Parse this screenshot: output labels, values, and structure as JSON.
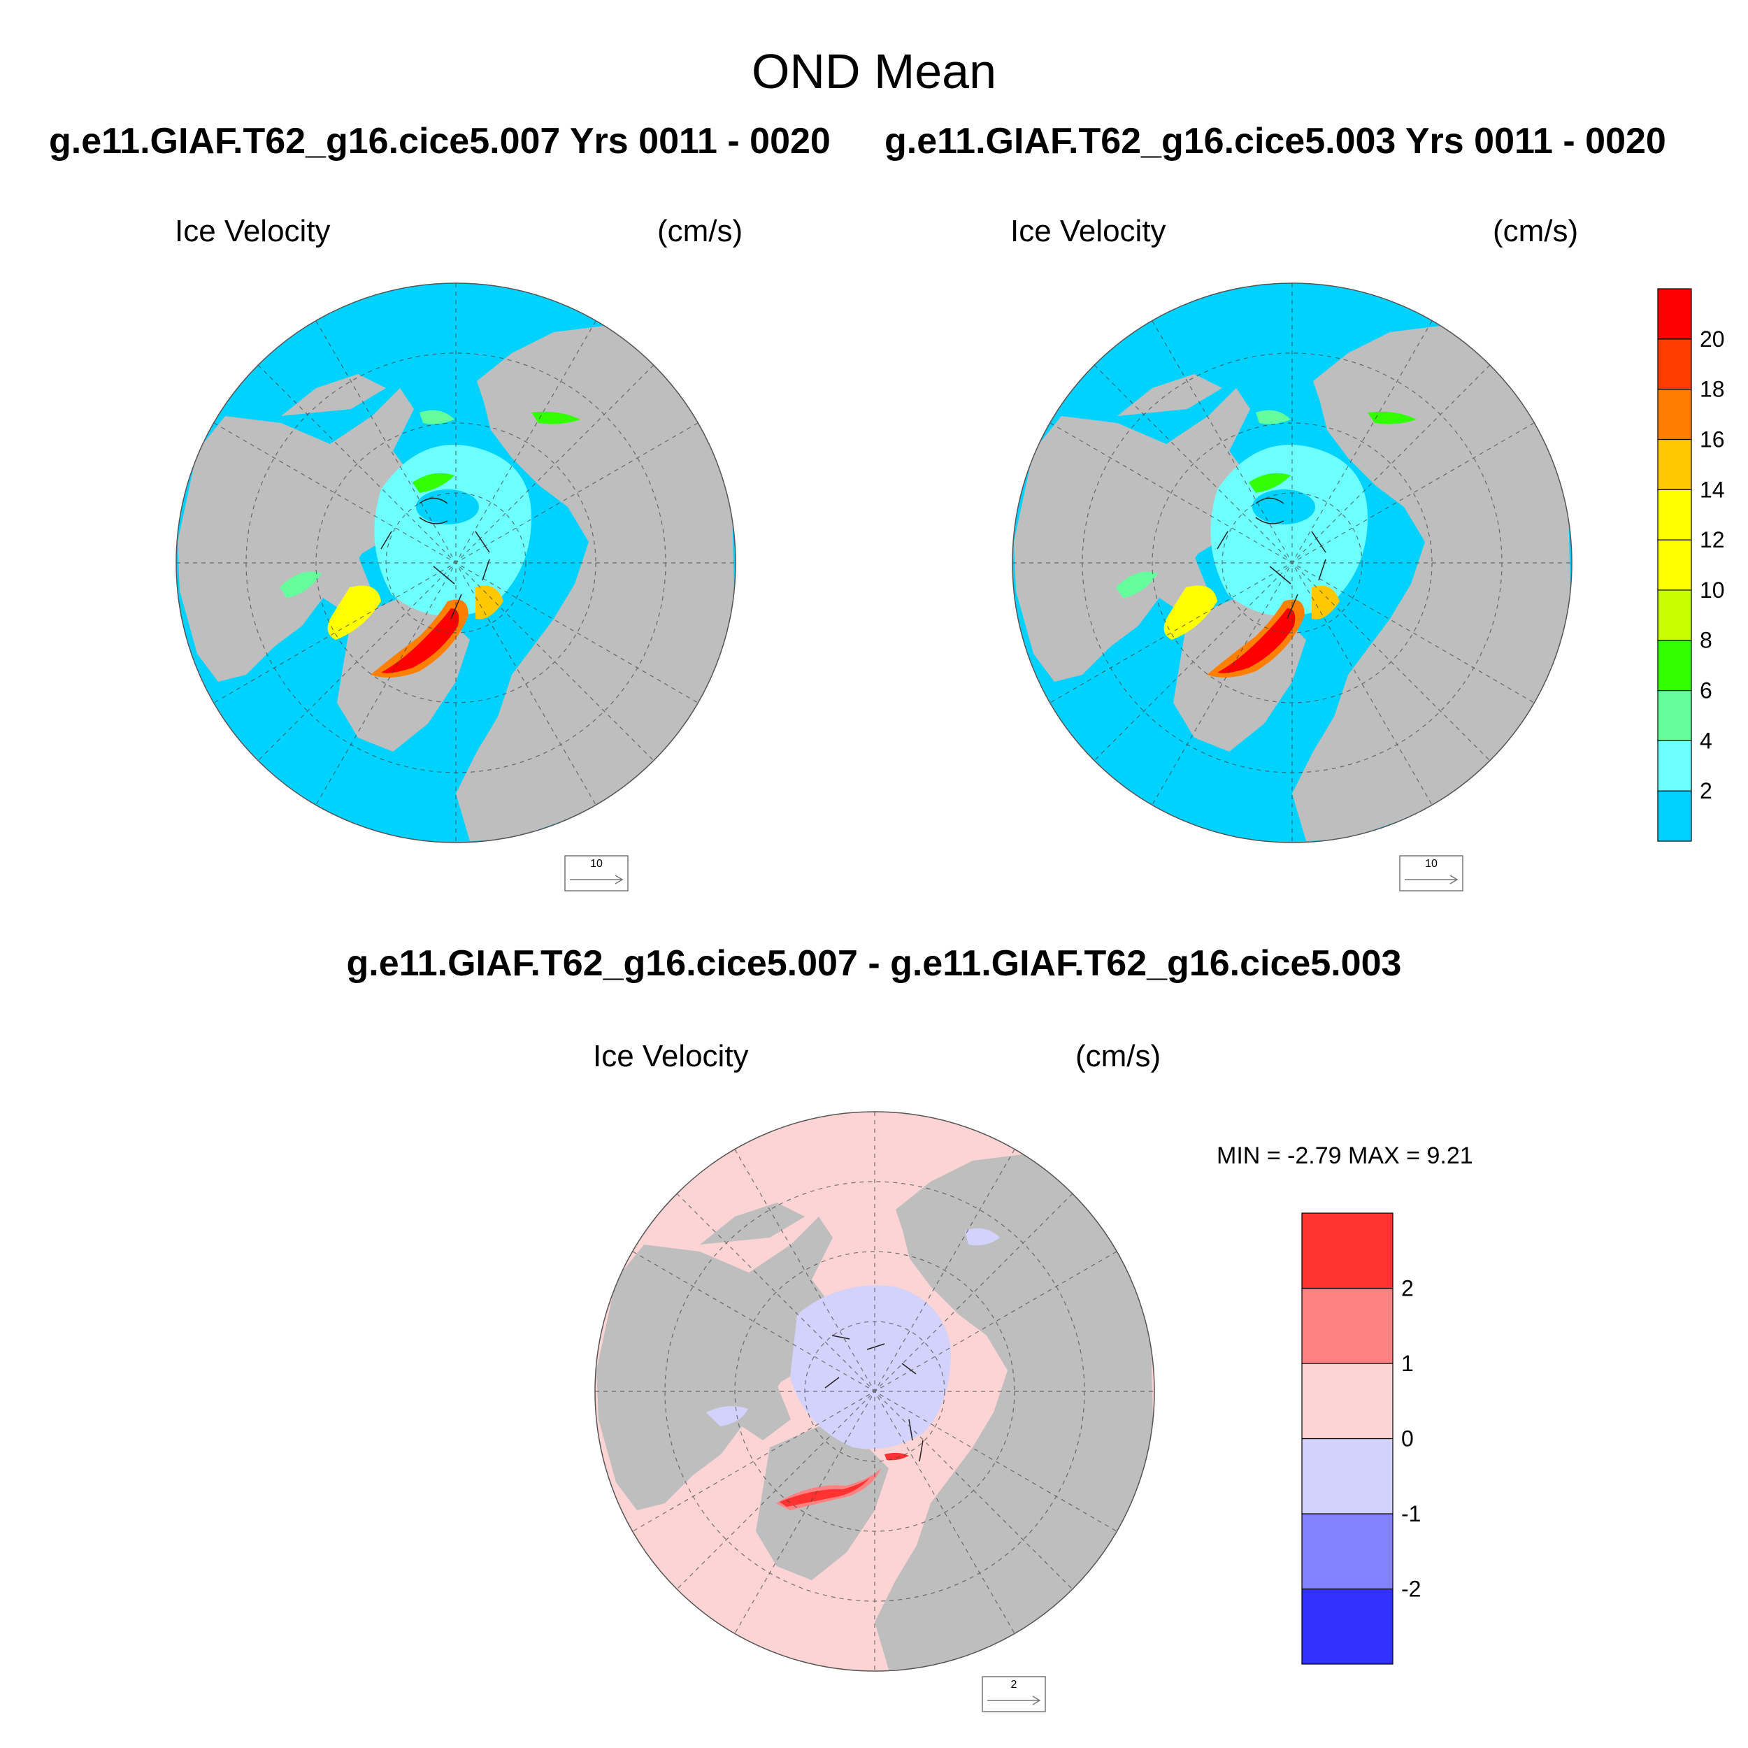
{
  "titles": {
    "main": "OND Mean",
    "run_a": "g.e11.GIAF.T62_g16.cice5.007  Yrs 0011 - 0020",
    "run_b": "g.e11.GIAF.T62_g16.cice5.003  Yrs 0011 - 0020",
    "difference": "g.e11.GIAF.T62_g16.cice5.007 - g.e11.GIAF.T62_g16.cice5.003"
  },
  "panels": [
    {
      "variable": "Ice Velocity",
      "units": "(cm/s)",
      "ref_vector": "10"
    },
    {
      "variable": "Ice Velocity",
      "units": "(cm/s)",
      "ref_vector": "10"
    },
    {
      "variable": "Ice Velocity",
      "units": "(cm/s)",
      "ref_vector": "2"
    }
  ],
  "stats": {
    "min_label": "MIN =",
    "min": "-2.79",
    "max_label": "MAX =",
    "max": "9.21"
  },
  "colors": {
    "land": "#bebebe",
    "ocean_low": "#00d2ff",
    "diff_pos": "#fcd4d4",
    "diff_neg": "#d2d2fc"
  },
  "chart_data": [
    {
      "type": "heatmap",
      "projection": "north-polar-stereographic",
      "title": "Ice Velocity",
      "units": "(cm/s)",
      "run": "g.e11.GIAF.T62_g16.cice5.007",
      "years": "0011 - 0020",
      "season": "OND",
      "colorbar": {
        "levels": [
          2,
          4,
          6,
          8,
          10,
          12,
          14,
          16,
          18,
          20
        ],
        "tick_labels": [
          "2",
          "4",
          "6",
          "8",
          "10",
          "12",
          "14",
          "16",
          "18",
          "20"
        ],
        "colors": [
          "#00d2ff",
          "#6effff",
          "#64ff9c",
          "#32ff00",
          "#c8ff00",
          "#ffff00",
          "#ffff00",
          "#ffc800",
          "#ff8000",
          "#ff3c00",
          "#ff0000"
        ],
        "shared_with_panel_2": true
      },
      "reference_vector": 10
    },
    {
      "type": "heatmap",
      "projection": "north-polar-stereographic",
      "title": "Ice Velocity",
      "units": "(cm/s)",
      "run": "g.e11.GIAF.T62_g16.cice5.003",
      "years": "0011 - 0020",
      "season": "OND",
      "colorbar": {
        "levels": [
          2,
          4,
          6,
          8,
          10,
          12,
          14,
          16,
          18,
          20
        ],
        "tick_labels": [
          "2",
          "4",
          "6",
          "8",
          "10",
          "12",
          "14",
          "16",
          "18",
          "20"
        ],
        "colors": [
          "#00d2ff",
          "#6effff",
          "#64ff9c",
          "#32ff00",
          "#c8ff00",
          "#ffff00",
          "#ffff00",
          "#ffc800",
          "#ff8000",
          "#ff3c00",
          "#ff0000"
        ]
      },
      "reference_vector": 10
    },
    {
      "type": "heatmap",
      "projection": "north-polar-stereographic",
      "title": "Ice Velocity",
      "units": "(cm/s)",
      "difference": "g.e11.GIAF.T62_g16.cice5.007 - g.e11.GIAF.T62_g16.cice5.003",
      "min": -2.79,
      "max": 9.21,
      "colorbar": {
        "levels": [
          -2,
          -1,
          0,
          1,
          2
        ],
        "tick_labels": [
          "-2",
          "-1",
          "0",
          "1",
          "2"
        ],
        "colors": [
          "#3232ff",
          "#8282ff",
          "#d2d2fc",
          "#fcd4d4",
          "#ff8282",
          "#ff3232"
        ]
      },
      "reference_vector": 2
    }
  ]
}
